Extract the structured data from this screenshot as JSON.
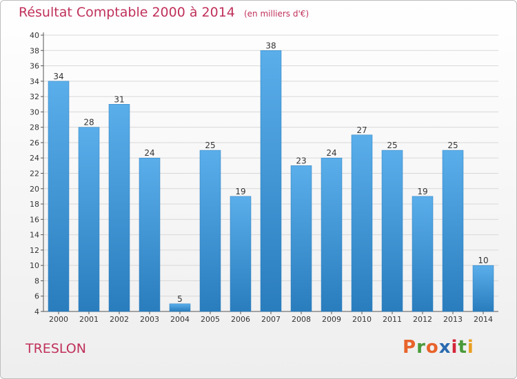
{
  "header": {
    "title": "Résultat Comptable 2000 à 2014",
    "unit": "(en milliers d'€)"
  },
  "footer": {
    "commune": "TRESLON",
    "logo_text": "Proxiti"
  },
  "colors": {
    "title": "#c0305a",
    "bar_top": "#5aaeea",
    "bar_bottom": "#2a7dbd",
    "grid": "#d8d8d8",
    "logo_letters": [
      "#e8632a",
      "#4a9a3a",
      "#e8632a",
      "#2a6ab0",
      "#d4263a",
      "#4a9a3a",
      "#e8a021"
    ]
  },
  "chart_data": {
    "type": "bar",
    "title": "Résultat Comptable 2000 à 2014",
    "subtitle": "(en milliers d'€)",
    "categories": [
      "2000",
      "2001",
      "2002",
      "2003",
      "2004",
      "2005",
      "2006",
      "2007",
      "2008",
      "2009",
      "2010",
      "2011",
      "2012",
      "2013",
      "2014"
    ],
    "values": [
      34,
      28,
      31,
      24,
      5,
      25,
      19,
      38,
      23,
      24,
      27,
      25,
      19,
      25,
      10
    ],
    "ylim": [
      4,
      40
    ],
    "yticks": [
      4,
      6,
      8,
      10,
      12,
      14,
      16,
      18,
      20,
      22,
      24,
      26,
      28,
      30,
      32,
      34,
      36,
      38,
      40
    ],
    "grid": true,
    "xlabel": "",
    "ylabel": ""
  }
}
